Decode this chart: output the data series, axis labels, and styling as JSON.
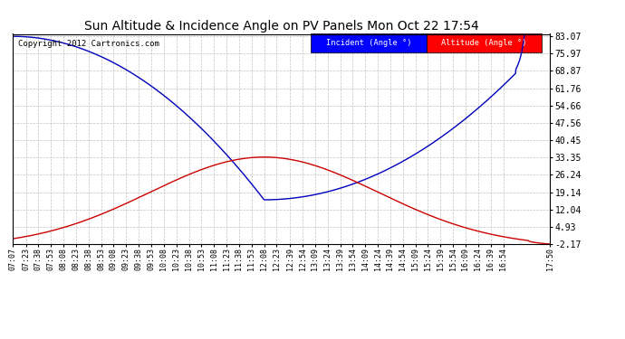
{
  "title": "Sun Altitude & Incidence Angle on PV Panels Mon Oct 22 17:54",
  "copyright": "Copyright 2012 Cartronics.com",
  "legend_incident": "Incident (Angle °)",
  "legend_altitude": "Altitude (Angle °)",
  "yticks": [
    83.07,
    75.97,
    68.87,
    61.76,
    54.66,
    47.56,
    40.45,
    33.35,
    26.24,
    19.14,
    12.04,
    4.93,
    -2.17
  ],
  "ymin": -2.17,
  "ymax": 83.07,
  "incident_color": "#0000bb",
  "altitude_color": "#cc0000",
  "bg_color": "#ffffff",
  "grid_color": "#bbbbbb",
  "xtick_labels": [
    "07:07",
    "07:23",
    "07:38",
    "07:53",
    "08:08",
    "08:23",
    "08:38",
    "08:53",
    "09:08",
    "09:23",
    "09:38",
    "09:53",
    "10:08",
    "10:23",
    "10:38",
    "10:53",
    "11:08",
    "11:23",
    "11:38",
    "11:53",
    "12:08",
    "12:23",
    "12:39",
    "12:54",
    "13:09",
    "13:24",
    "13:39",
    "13:54",
    "14:09",
    "14:24",
    "14:39",
    "14:54",
    "15:09",
    "15:24",
    "15:39",
    "15:54",
    "16:09",
    "16:24",
    "16:39",
    "16:54",
    "17:50"
  ]
}
